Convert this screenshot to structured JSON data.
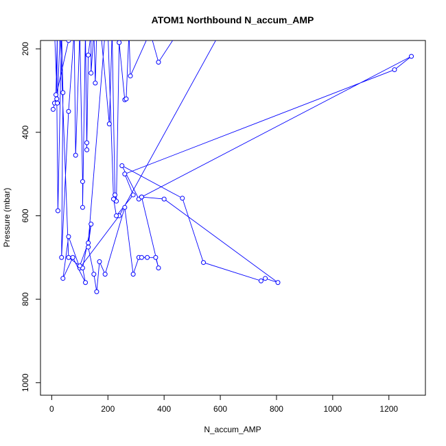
{
  "chart_data": {
    "type": "line",
    "title": "ATOM1 Northbound N_accum_AMP",
    "xlabel": "N_accum_AMP",
    "ylabel": "Pressure (mbar)",
    "xlim": [
      -40,
      1330
    ],
    "ylim": [
      1030,
      180
    ],
    "y_reversed": true,
    "x_ticks": [
      0,
      200,
      400,
      600,
      800,
      1000,
      1200
    ],
    "y_ticks": [
      200,
      400,
      600,
      800,
      1000
    ],
    "series_color": "#0000ff",
    "grid": false,
    "legend": "none",
    "series": [
      {
        "points": [
          [
            5,
            345
          ],
          [
            60,
            180
          ],
          [
            10,
            330
          ],
          [
            15,
            310
          ],
          [
            20,
            160
          ],
          [
            18,
            320
          ],
          [
            22,
            588
          ],
          [
            35,
            160
          ],
          [
            40,
            305
          ],
          [
            35,
            700
          ],
          [
            60,
            350
          ],
          [
            80,
            160
          ],
          [
            85,
            455
          ],
          [
            100,
            160
          ],
          [
            110,
            518
          ],
          [
            110,
            580
          ],
          [
            120,
            160
          ],
          [
            125,
            442
          ],
          [
            125,
            425
          ],
          [
            130,
            215
          ],
          [
            140,
            160
          ],
          [
            140,
            258
          ],
          [
            150,
            160
          ],
          [
            155,
            282
          ],
          [
            160,
            160
          ],
          [
            175,
            160
          ],
          [
            205,
            380
          ],
          [
            215,
            160
          ],
          [
            225,
            550
          ],
          [
            230,
            565
          ],
          [
            240,
            185
          ],
          [
            260,
            322
          ],
          [
            265,
            320
          ],
          [
            275,
            160
          ],
          [
            280,
            265
          ],
          [
            350,
            160
          ],
          [
            380,
            232
          ],
          [
            450,
            160
          ],
          [
            600,
            160
          ],
          [
            240,
            600
          ],
          [
            100,
            725
          ],
          [
            60,
            650
          ],
          [
            40,
            750
          ],
          [
            75,
            700
          ],
          [
            120,
            760
          ],
          [
            110,
            725
          ],
          [
            140,
            620
          ],
          [
            130,
            675
          ],
          [
            150,
            740
          ],
          [
            160,
            782
          ],
          [
            170,
            710
          ],
          [
            190,
            740
          ],
          [
            260,
            580
          ],
          [
            290,
            740
          ],
          [
            310,
            700
          ],
          [
            320,
            700
          ],
          [
            340,
            700
          ],
          [
            370,
            700
          ],
          [
            380,
            725
          ],
          [
            320,
            555
          ],
          [
            310,
            560
          ],
          [
            250,
            480
          ],
          [
            465,
            558
          ],
          [
            540,
            712
          ],
          [
            745,
            756
          ],
          [
            760,
            750
          ],
          [
            805,
            760
          ],
          [
            400,
            560
          ],
          [
            320,
            555
          ],
          [
            1280,
            218
          ],
          [
            1220,
            250
          ],
          [
            260,
            500
          ],
          [
            290,
            550
          ],
          [
            230,
            600
          ],
          [
            220,
            560
          ],
          [
            200,
            160
          ],
          [
            190,
            160
          ],
          [
            130,
            665
          ],
          [
            100,
            720
          ],
          [
            60,
            700
          ],
          [
            30,
            160
          ],
          [
            20,
            330
          ],
          [
            10,
            160
          ]
        ]
      }
    ]
  }
}
